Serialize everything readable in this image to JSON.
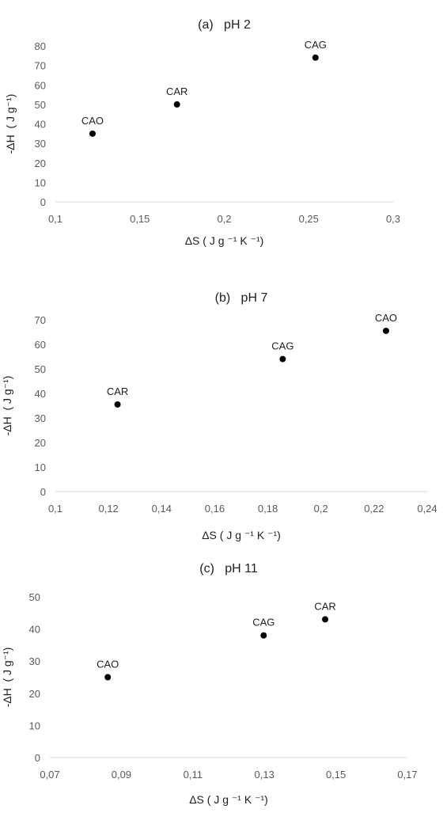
{
  "chart_data": [
    {
      "type": "scatter",
      "title": "(a)   pH 2",
      "xlabel": "ΔS ( J g ⁻¹ K ⁻¹)",
      "ylabel": "-ΔH  ( J g⁻¹)",
      "xlim": [
        0.1,
        0.3
      ],
      "ylim": [
        0,
        80
      ],
      "xticks": [
        "0,1",
        "0,15",
        "0,2",
        "0,25",
        "0,3"
      ],
      "yticks": [
        "0",
        "10",
        "20",
        "30",
        "40",
        "50",
        "60",
        "70",
        "80"
      ],
      "grid": false,
      "points": [
        {
          "label": "CAO",
          "x": 0.122,
          "y": 35
        },
        {
          "label": "CAR",
          "x": 0.172,
          "y": 50
        },
        {
          "label": "CAG",
          "x": 0.254,
          "y": 74
        }
      ]
    },
    {
      "type": "scatter",
      "title": "(b)   pH 7",
      "xlabel": "ΔS ( J g ⁻¹ K ⁻¹)",
      "ylabel": "-ΔH  ( J g⁻¹)",
      "xlim": [
        0.1,
        0.24
      ],
      "ylim": [
        0,
        70
      ],
      "xticks": [
        "0,1",
        "0,12",
        "0,14",
        "0,16",
        "0,18",
        "0,2",
        "0,22",
        "0,24"
      ],
      "yticks": [
        "0",
        "10",
        "20",
        "30",
        "40",
        "50",
        "60",
        "70"
      ],
      "grid": false,
      "points": [
        {
          "label": "CAR",
          "x": 0.1234,
          "y": 35.5
        },
        {
          "label": "CAG",
          "x": 0.1856,
          "y": 54
        },
        {
          "label": "CAO",
          "x": 0.2245,
          "y": 65.5
        }
      ]
    },
    {
      "type": "scatter",
      "title": "(c)   pH 11",
      "xlabel": "ΔS ( J g ⁻¹ K ⁻¹)",
      "ylabel": "-ΔH  ( J g⁻¹)",
      "xlim": [
        0.07,
        0.17
      ],
      "ylim": [
        0,
        50
      ],
      "xticks": [
        "0,07",
        "0,09",
        "0,11",
        "0,13",
        "0,15",
        "0,17"
      ],
      "yticks": [
        "0",
        "10",
        "20",
        "30",
        "40",
        "50"
      ],
      "grid": false,
      "points": [
        {
          "label": "CAO",
          "x": 0.0862,
          "y": 25
        },
        {
          "label": "CAG",
          "x": 0.1298,
          "y": 38
        },
        {
          "label": "CAR",
          "x": 0.147,
          "y": 43
        }
      ]
    }
  ]
}
